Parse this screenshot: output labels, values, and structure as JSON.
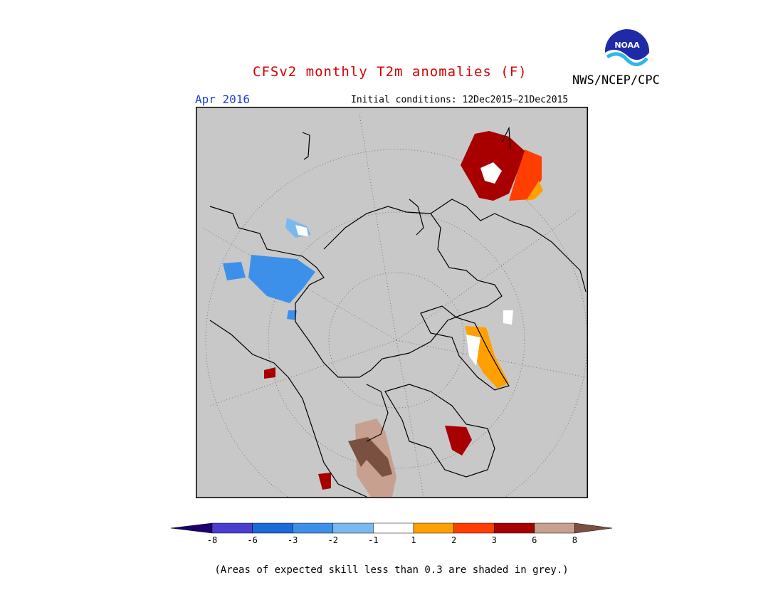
{
  "title": "CFSv2 monthly T2m anomalies (F)",
  "agency": "NWS/NCEP/CPC",
  "logo_text": "NOAA",
  "forecast_month": "Apr 2016",
  "initial_conditions": "Initial conditions: 12Dec2015–21Dec2015",
  "colorbar": {
    "ticks": [
      "-8",
      "-6",
      "-3",
      "-2",
      "-1",
      "1",
      "2",
      "3",
      "6",
      "8"
    ],
    "colors": [
      "#1a0070",
      "#4a3ed0",
      "#1a6ad8",
      "#3d90ea",
      "#7ab8f2",
      "#ffffff",
      "#ffa000",
      "#ff3e00",
      "#a80000",
      "#c8a090",
      "#7a5040"
    ]
  },
  "anomaly_regions": [
    {
      "region": "north-pacific-warm-patch",
      "category": "6"
    },
    {
      "region": "north-pacific-edge",
      "category": "3"
    },
    {
      "region": "north-pacific-edge",
      "category": "2"
    },
    {
      "region": "greenland",
      "category": "2"
    },
    {
      "region": "scandinavia",
      "category": "6"
    },
    {
      "region": "central-asia",
      "category": "8"
    },
    {
      "region": "eastern-europe",
      "category": "-2"
    }
  ],
  "skill_note": "(Areas of expected skill less than 0.3 are shaded in grey.)"
}
